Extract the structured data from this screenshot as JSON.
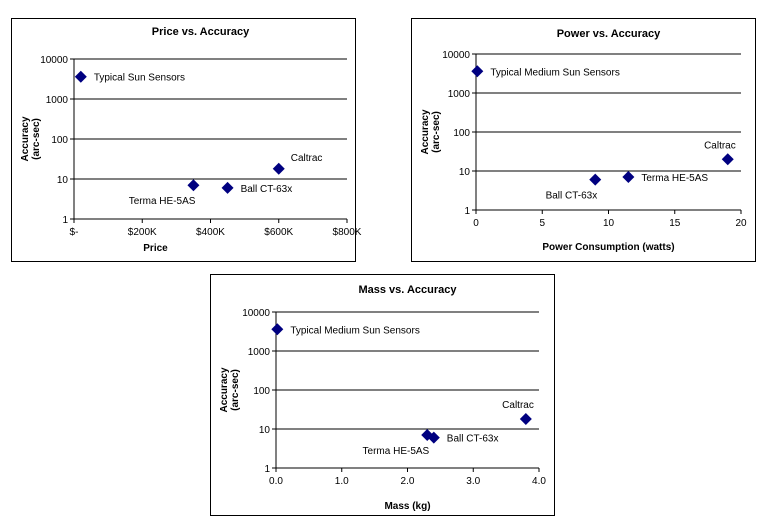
{
  "chart_data": [
    {
      "type": "scatter",
      "title": "Price vs. Accuracy",
      "xlabel": "Price",
      "ylabel": [
        "Accuracy",
        "(arc-sec)"
      ],
      "x_ticks": [
        {
          "value": 0,
          "label": "$-"
        },
        {
          "value": 200,
          "label": "$200K"
        },
        {
          "value": 400,
          "label": "$400K"
        },
        {
          "value": 600,
          "label": "$600K"
        },
        {
          "value": 800,
          "label": "$800K"
        }
      ],
      "xlim": [
        0,
        800
      ],
      "y_scale": "log",
      "ylim": [
        1,
        10000
      ],
      "y_ticks": [
        {
          "value": 1,
          "label": "1"
        },
        {
          "value": 10,
          "label": "10"
        },
        {
          "value": 100,
          "label": "100"
        },
        {
          "value": 1000,
          "label": "1000"
        },
        {
          "value": 10000,
          "label": "10000"
        }
      ],
      "grid": "horizontal",
      "points": [
        {
          "x": 20,
          "y": 3600,
          "label": "Typical Sun Sensors",
          "label_pos": "right"
        },
        {
          "x": 350,
          "y": 7,
          "label": "Terma HE-5AS",
          "label_pos": "below-left"
        },
        {
          "x": 450,
          "y": 6,
          "label": "Ball CT-63x",
          "label_pos": "right"
        },
        {
          "x": 600,
          "y": 18,
          "label": "Caltrac",
          "label_pos": "above-right"
        }
      ]
    },
    {
      "type": "scatter",
      "title": "Power vs. Accuracy",
      "xlabel": "Power Consumption (watts)",
      "ylabel": [
        "Accuracy",
        "(arc-sec)"
      ],
      "x_ticks": [
        {
          "value": 0,
          "label": "0"
        },
        {
          "value": 5,
          "label": "5"
        },
        {
          "value": 10,
          "label": "10"
        },
        {
          "value": 15,
          "label": "15"
        },
        {
          "value": 20,
          "label": "20"
        }
      ],
      "xlim": [
        0,
        20
      ],
      "y_scale": "log",
      "ylim": [
        1,
        10000
      ],
      "y_ticks": [
        {
          "value": 1,
          "label": "1"
        },
        {
          "value": 10,
          "label": "10"
        },
        {
          "value": 100,
          "label": "100"
        },
        {
          "value": 1000,
          "label": "1000"
        },
        {
          "value": 10000,
          "label": "10000"
        }
      ],
      "grid": "horizontal",
      "points": [
        {
          "x": 0.1,
          "y": 3600,
          "label": "Typical Medium Sun Sensors",
          "label_pos": "right"
        },
        {
          "x": 9,
          "y": 6,
          "label": "Ball CT-63x",
          "label_pos": "below-left"
        },
        {
          "x": 11.5,
          "y": 7,
          "label": "Terma HE-5AS",
          "label_pos": "right"
        },
        {
          "x": 19,
          "y": 20,
          "label": "Caltrac",
          "label_pos": "above-left"
        }
      ]
    },
    {
      "type": "scatter",
      "title": "Mass vs. Accuracy",
      "xlabel": "Mass (kg)",
      "ylabel": [
        "Accuracy",
        "(arc-sec)"
      ],
      "x_ticks": [
        {
          "value": 0,
          "label": "0.0"
        },
        {
          "value": 1,
          "label": "1.0"
        },
        {
          "value": 2,
          "label": "2.0"
        },
        {
          "value": 3,
          "label": "3.0"
        },
        {
          "value": 4,
          "label": "4.0"
        }
      ],
      "xlim": [
        0,
        4
      ],
      "y_scale": "log",
      "ylim": [
        1,
        10000
      ],
      "y_ticks": [
        {
          "value": 1,
          "label": "1"
        },
        {
          "value": 10,
          "label": "10"
        },
        {
          "value": 100,
          "label": "100"
        },
        {
          "value": 1000,
          "label": "1000"
        },
        {
          "value": 10000,
          "label": "10000"
        }
      ],
      "grid": "horizontal",
      "points": [
        {
          "x": 0.02,
          "y": 3600,
          "label": "Typical Medium Sun Sensors",
          "label_pos": "right"
        },
        {
          "x": 2.3,
          "y": 7,
          "label": "Terma HE-5AS",
          "label_pos": "below-left"
        },
        {
          "x": 2.4,
          "y": 6,
          "label": "Ball CT-63x",
          "label_pos": "right"
        },
        {
          "x": 3.8,
          "y": 18,
          "label": "Caltrac",
          "label_pos": "above-left"
        }
      ]
    }
  ],
  "marker_color": "#000080"
}
